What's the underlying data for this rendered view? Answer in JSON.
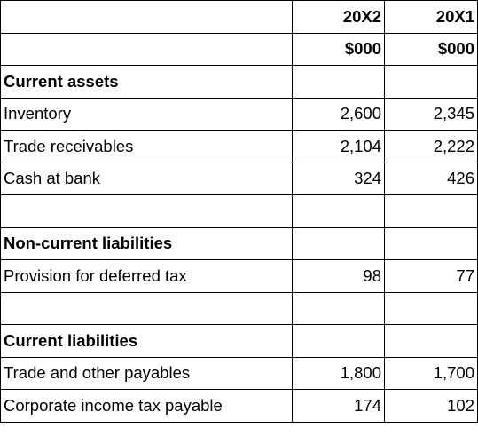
{
  "header": {
    "years": [
      "20X2",
      "20X1"
    ],
    "units": [
      "$000",
      "$000"
    ]
  },
  "rows": [
    {
      "type": "section",
      "label": "Current assets"
    },
    {
      "type": "item",
      "label": "Inventory",
      "v20X2": "2,600",
      "v20X1": "2,345"
    },
    {
      "type": "item",
      "label": "Trade receivables",
      "v20X2": "2,104",
      "v20X1": "2,222"
    },
    {
      "type": "item",
      "label": "Cash at bank",
      "v20X2": "324",
      "v20X1": "426"
    },
    {
      "type": "blank"
    },
    {
      "type": "section",
      "label": "Non-current liabilities"
    },
    {
      "type": "item",
      "label": "Provision for deferred tax",
      "v20X2": "98",
      "v20X1": "77"
    },
    {
      "type": "blank"
    },
    {
      "type": "section",
      "label": "Current liabilities"
    },
    {
      "type": "item",
      "label": "Trade and other payables",
      "v20X2": "1,800",
      "v20X1": "1,700"
    },
    {
      "type": "item",
      "label": "Corporate income tax payable",
      "v20X2": "174",
      "v20X1": "102"
    }
  ]
}
